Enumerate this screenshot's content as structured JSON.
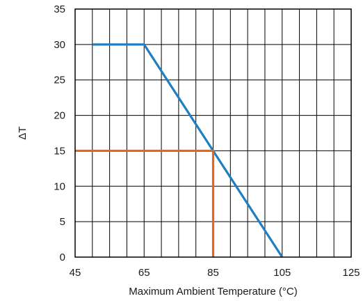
{
  "chart_data": {
    "type": "line",
    "title": "",
    "xlabel": "Maximum Ambient Temperature (°C)",
    "ylabel": "ΔT",
    "xlim": [
      45,
      125
    ],
    "ylim": [
      0,
      35
    ],
    "x_ticks": [
      45,
      65,
      85,
      105,
      125
    ],
    "y_ticks": [
      0,
      5,
      10,
      15,
      20,
      25,
      30,
      35
    ],
    "x_minor_step": 5,
    "y_minor_step": 5,
    "grid": true,
    "legend": "none",
    "series": [
      {
        "color": "#1f7ec2",
        "x": [
          50,
          65,
          105
        ],
        "y": [
          30,
          30,
          0
        ]
      },
      {
        "color": "#e8641b",
        "x": [
          45,
          85,
          85
        ],
        "y": [
          15,
          15,
          0
        ]
      }
    ]
  }
}
